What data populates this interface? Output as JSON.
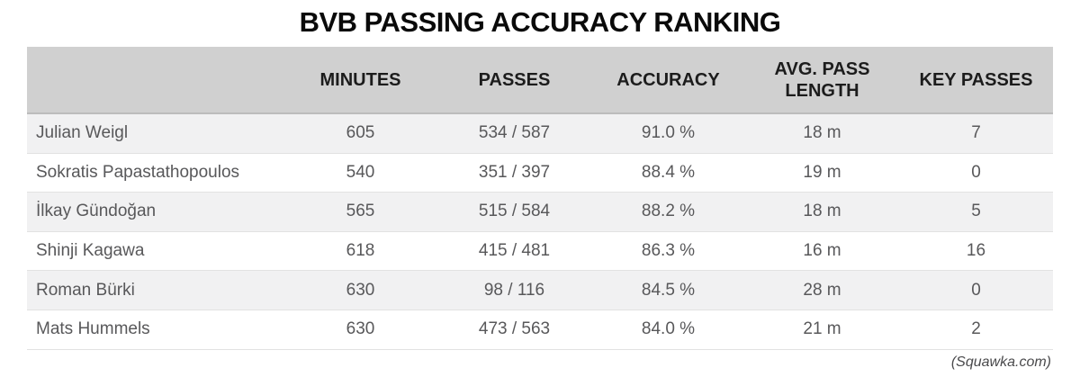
{
  "credit": "(Squawka.com)",
  "colors": {
    "header_bg": "#d0d0d0",
    "header_border": "#bcbcbc",
    "stripe_bg": "#f1f1f2",
    "row_border": "#e2e2e2",
    "title_color": "#0a0a0a",
    "header_text": "#1c1c1c",
    "cell_text": "#58585a",
    "credit_color": "#4a4a4c",
    "page_bg": "#ffffff"
  },
  "chart_data": {
    "type": "table",
    "title": "BVB PASSING ACCURACY RANKING",
    "columns": [
      "",
      "MINUTES",
      "PASSES",
      "ACCURACY",
      "AVG. PASS LENGTH",
      "KEY PASSES"
    ],
    "rows": [
      {
        "name": "Julian Weigl",
        "minutes": "605",
        "passes": "534 / 587",
        "accuracy": "91.0 %",
        "avg_pass_length": "18 m",
        "key_passes": "7"
      },
      {
        "name": "Sokratis Papastathopoulos",
        "minutes": "540",
        "passes": "351 / 397",
        "accuracy": "88.4 %",
        "avg_pass_length": "19 m",
        "key_passes": "0"
      },
      {
        "name": "İlkay Gündoğan",
        "minutes": "565",
        "passes": "515 / 584",
        "accuracy": "88.2 %",
        "avg_pass_length": "18 m",
        "key_passes": "5"
      },
      {
        "name": "Shinji Kagawa",
        "minutes": "618",
        "passes": "415 / 481",
        "accuracy": "86.3 %",
        "avg_pass_length": "16 m",
        "key_passes": "16"
      },
      {
        "name": "Roman Bürki",
        "minutes": "630",
        "passes": "98 / 116",
        "accuracy": "84.5 %",
        "avg_pass_length": "28 m",
        "key_passes": "0"
      },
      {
        "name": "Mats Hummels",
        "minutes": "630",
        "passes": "473 / 563",
        "accuracy": "84.0 %",
        "avg_pass_length": "21 m",
        "key_passes": "2"
      }
    ]
  }
}
